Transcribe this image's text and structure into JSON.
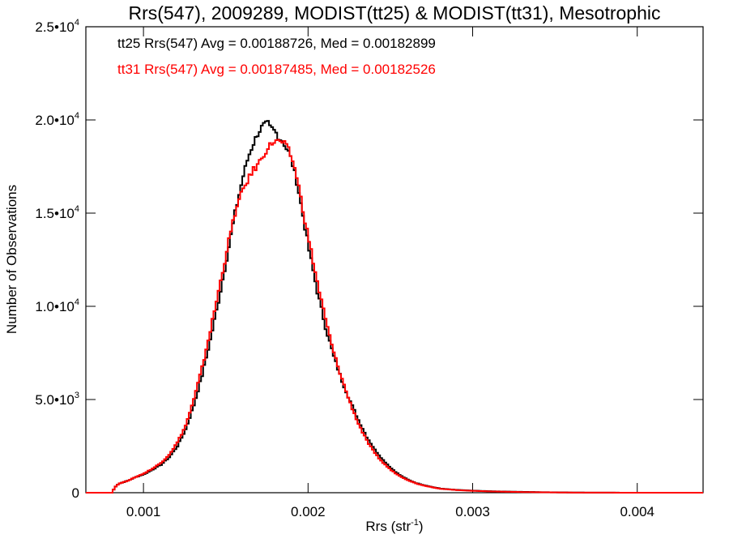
{
  "chart_data": {
    "type": "line",
    "title": "Rrs(547), 2009289, MODIST(tt25) & MODIST(tt31), Mesotrophic",
    "xlabel": "Rrs (str",
    "xlabel_sup": "-1",
    "xlabel_end": ")",
    "ylabel": "Number of Observations",
    "xlim": [
      0.00065,
      0.0044
    ],
    "ylim": [
      0,
      25000
    ],
    "xticks": [
      {
        "value": 0.001,
        "label": "0.001"
      },
      {
        "value": 0.002,
        "label": "0.002"
      },
      {
        "value": 0.003,
        "label": "0.003"
      },
      {
        "value": 0.004,
        "label": "0.004"
      }
    ],
    "yticks": [
      {
        "value": 0,
        "mant": "0",
        "exp": ""
      },
      {
        "value": 5000,
        "mant": "5.0•10",
        "exp": "3"
      },
      {
        "value": 10000,
        "mant": "1.0•10",
        "exp": "4"
      },
      {
        "value": 15000,
        "mant": "1.5•10",
        "exp": "4"
      },
      {
        "value": 20000,
        "mant": "2.0•10",
        "exp": "4"
      },
      {
        "value": 25000,
        "mant": "2.5•10",
        "exp": "4"
      }
    ],
    "annotations": [
      {
        "text": "tt25 Rrs(547) Avg = 0.00188726, Med = 0.00182899",
        "color": "#000000"
      },
      {
        "text": "tt31 Rrs(547) Avg = 0.00187485, Med = 0.00182526",
        "color": "#ff0000"
      }
    ],
    "series": [
      {
        "color": "#000000",
        "x": [
          0.00065,
          0.00075,
          0.0008,
          0.00083,
          0.00085,
          0.0009,
          0.00095,
          0.001,
          0.00105,
          0.0011,
          0.00115,
          0.0012,
          0.00125,
          0.0013,
          0.00135,
          0.0014,
          0.00145,
          0.0015,
          0.00155,
          0.0016,
          0.00163,
          0.00166,
          0.00169,
          0.00172,
          0.00175,
          0.00176,
          0.00178,
          0.0018,
          0.00182,
          0.00184,
          0.00186,
          0.00188,
          0.0019,
          0.00193,
          0.00196,
          0.002,
          0.00205,
          0.0021,
          0.00215,
          0.0022,
          0.00225,
          0.0023,
          0.00235,
          0.0024,
          0.00245,
          0.0025,
          0.00255,
          0.0026,
          0.00265,
          0.0027,
          0.00275,
          0.0028,
          0.0029,
          0.003,
          0.0031,
          0.0032,
          0.0033,
          0.0034,
          0.0035,
          0.0036,
          0.0038,
          0.004,
          0.0042,
          0.0044
        ],
        "y": [
          0,
          0,
          0,
          400,
          500,
          650,
          850,
          1000,
          1250,
          1500,
          1900,
          2500,
          3400,
          4700,
          6300,
          8200,
          10300,
          12600,
          15000,
          17000,
          18000,
          18700,
          19300,
          19700,
          19800,
          19600,
          19500,
          19300,
          19000,
          18900,
          18500,
          18200,
          17600,
          16500,
          15000,
          13000,
          10800,
          8900,
          7300,
          6000,
          4900,
          3900,
          3000,
          2300,
          1750,
          1300,
          950,
          700,
          520,
          400,
          300,
          220,
          150,
          110,
          80,
          60,
          45,
          30,
          20,
          10,
          5,
          0,
          0,
          0
        ]
      },
      {
        "color": "#ff0000",
        "x": [
          0.00065,
          0.00075,
          0.0008,
          0.00083,
          0.00085,
          0.0009,
          0.00095,
          0.001,
          0.00105,
          0.0011,
          0.00115,
          0.0012,
          0.00125,
          0.0013,
          0.00135,
          0.0014,
          0.00145,
          0.0015,
          0.00155,
          0.0016,
          0.00163,
          0.00166,
          0.00169,
          0.00172,
          0.00175,
          0.00178,
          0.0018,
          0.00182,
          0.00184,
          0.00186,
          0.00188,
          0.0019,
          0.00193,
          0.00196,
          0.002,
          0.00205,
          0.0021,
          0.00215,
          0.0022,
          0.00225,
          0.0023,
          0.00235,
          0.0024,
          0.00245,
          0.0025,
          0.00255,
          0.0026,
          0.00265,
          0.0027,
          0.00275,
          0.0028,
          0.0029,
          0.003,
          0.0031,
          0.0032,
          0.0033,
          0.0034,
          0.0035,
          0.0036,
          0.0038,
          0.004,
          0.0042,
          0.0044
        ],
        "y": [
          0,
          0,
          0,
          400,
          500,
          650,
          850,
          1050,
          1300,
          1600,
          2050,
          2700,
          3600,
          5000,
          6700,
          8700,
          10800,
          13000,
          15000,
          16300,
          16800,
          17300,
          17600,
          18100,
          18500,
          18800,
          18900,
          18800,
          18800,
          18600,
          18300,
          17800,
          16800,
          15300,
          13500,
          11300,
          9300,
          7500,
          6100,
          4800,
          3700,
          2800,
          2100,
          1600,
          1200,
          900,
          680,
          500,
          380,
          290,
          210,
          140,
          100,
          70,
          50,
          35,
          25,
          15,
          8,
          4,
          0,
          0,
          0
        ]
      }
    ],
    "grid": false,
    "legend": "none",
    "step": true
  }
}
